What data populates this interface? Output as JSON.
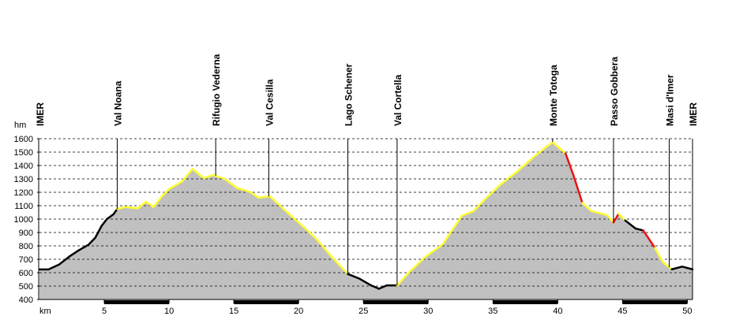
{
  "chart_data": {
    "type": "area",
    "y_unit": "hm",
    "x_unit": "km",
    "fill": "#c0c0c0",
    "grid": true,
    "xlim": [
      0,
      50.4
    ],
    "ylim": [
      400,
      1600
    ],
    "yticks": [
      400,
      500,
      600,
      700,
      800,
      900,
      1000,
      1100,
      1200,
      1300,
      1400,
      1500,
      1600
    ],
    "xticks": [
      5,
      10,
      15,
      20,
      25,
      30,
      35,
      40,
      45,
      50
    ],
    "x": [
      0,
      0.7,
      1.5,
      2.3,
      3.0,
      3.8,
      4.3,
      4.8,
      5.2,
      5.7,
      6.0,
      6.6,
      7.6,
      8.2,
      8.8,
      9.4,
      10.0,
      11.0,
      11.8,
      12.7,
      13.4,
      14.3,
      15.2,
      16.3,
      16.9,
      17.8,
      18.9,
      20.0,
      21.3,
      22.5,
      23.8,
      24.7,
      25.6,
      26.2,
      26.8,
      27.6,
      28.6,
      29.8,
      31.1,
      32.6,
      33.5,
      34.4,
      35.6,
      36.8,
      38.1,
      39.0,
      39.6,
      40.6,
      41.2,
      41.9,
      42.6,
      43.8,
      44.3,
      44.7,
      45.2,
      46.0,
      46.6,
      47.5,
      48.1,
      48.8,
      49.6,
      50.4
    ],
    "values": [
      624,
      624,
      660,
      720,
      765,
      810,
      860,
      950,
      1000,
      1035,
      1075,
      1090,
      1080,
      1130,
      1090,
      1165,
      1225,
      1280,
      1375,
      1305,
      1330,
      1300,
      1235,
      1200,
      1160,
      1170,
      1070,
      975,
      860,
      725,
      590,
      555,
      505,
      480,
      505,
      505,
      610,
      720,
      810,
      1025,
      1060,
      1150,
      1260,
      1350,
      1460,
      1530,
      1575,
      1490,
      1330,
      1120,
      1060,
      1030,
      975,
      1040,
      990,
      930,
      915,
      785,
      680,
      625,
      645,
      625
    ],
    "line_colors": [
      "#000000",
      "#000000",
      "#000000",
      "#000000",
      "#000000",
      "#000000",
      "#000000",
      "#000000",
      "#000000",
      "#000000",
      "#ffff33",
      "#ffff33",
      "#ffff33",
      "#ffff33",
      "#ffff33",
      "#ffff33",
      "#ffff33",
      "#ffff33",
      "#ffff33",
      "#ffff33",
      "#ffff33",
      "#ffff33",
      "#ffff33",
      "#ffff33",
      "#ffff33",
      "#ffff33",
      "#ffff33",
      "#ffff33",
      "#ffff33",
      "#ffff33",
      "#000000",
      "#000000",
      "#000000",
      "#000000",
      "#000000",
      "#ffff33",
      "#ffff33",
      "#ffff33",
      "#ffff33",
      "#ffff33",
      "#ffff33",
      "#ffff33",
      "#ffff33",
      "#ffff33",
      "#ffff33",
      "#ffff33",
      "#ffff33",
      "#ee1111",
      "#ee1111",
      "#ffff33",
      "#ffff33",
      "#ffff33",
      "#ee1111",
      "#ffff33",
      "#000000",
      "#000000",
      "#ee1111",
      "#ffff33",
      "#ffff33",
      "#000000",
      "#000000"
    ],
    "waypoints": [
      {
        "label": "IMER",
        "x": 0
      },
      {
        "label": "Val Noana",
        "x": 6.0
      },
      {
        "label": "Rifugio Vederna",
        "x": 13.6
      },
      {
        "label": "Val Cesilla",
        "x": 17.7
      },
      {
        "label": "Lago Schener",
        "x": 23.8
      },
      {
        "label": "Val Cortella",
        "x": 27.6
      },
      {
        "label": "Monte Totoga",
        "x": 39.6
      },
      {
        "label": "Passo Gobbera",
        "x": 44.3
      },
      {
        "label": "Masi d'Imer",
        "x": 48.6
      },
      {
        "label": "IMER",
        "x": 50.4
      }
    ]
  }
}
